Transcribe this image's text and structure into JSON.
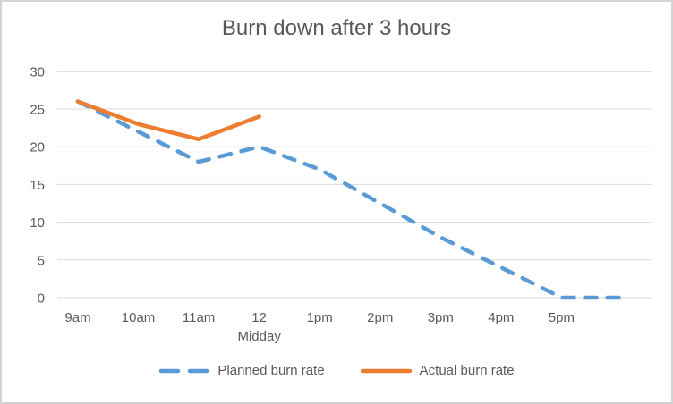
{
  "chart_data": {
    "type": "line",
    "title": "Burn down after 3 hours",
    "categories": [
      "9am",
      "10am",
      "11am",
      "12",
      "1pm",
      "2pm",
      "3pm",
      "4pm",
      "5pm",
      ""
    ],
    "category_sublabels": [
      "",
      "",
      "",
      "Midday",
      "",
      "",
      "",
      "",
      "",
      ""
    ],
    "yticks": [
      0,
      5,
      10,
      15,
      20,
      25,
      30
    ],
    "ylim": [
      0,
      30
    ],
    "grid": true,
    "legend_position": "bottom",
    "series": [
      {
        "name": "Planned burn rate",
        "color": "#5B9BD5",
        "line_style": "dashed",
        "values": [
          26,
          22,
          18,
          20,
          17,
          12.5,
          8,
          4,
          0,
          0
        ]
      },
      {
        "name": "Actual burn rate",
        "color": "#ED7D31",
        "line_style": "solid",
        "values": [
          26,
          23,
          21,
          24
        ]
      }
    ],
    "text_color": "#595959",
    "grid_color": "#D9D9D9"
  }
}
